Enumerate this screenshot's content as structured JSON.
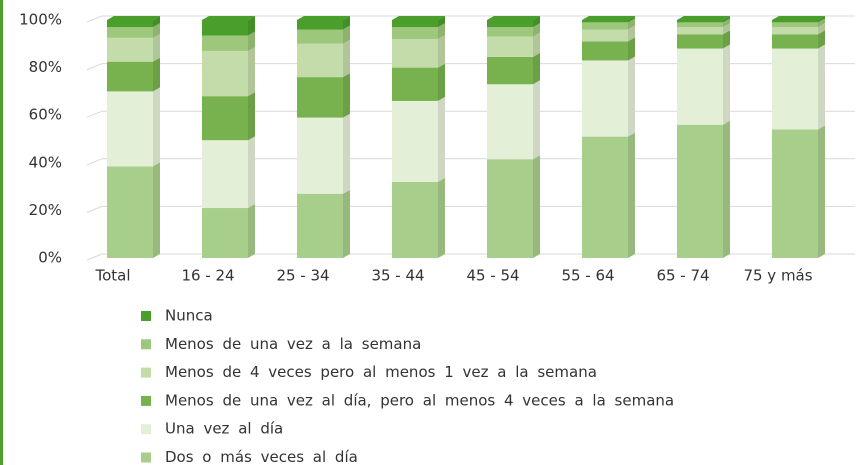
{
  "chart_data": {
    "type": "stacked_bar",
    "categories": [
      "Total",
      "16 - 24",
      "25 - 34",
      "35 - 44",
      "45 - 54",
      "55 - 64",
      "65 - 74",
      "75 y más"
    ],
    "series": [
      {
        "name": "Dos o más veces al día",
        "color": "#a8ce8b",
        "values": [
          38.5,
          21,
          27,
          32,
          41.5,
          51,
          56,
          54
        ]
      },
      {
        "name": "Una vez al día",
        "color": "#e4efd7",
        "values": [
          31.5,
          28.5,
          32,
          34,
          31.5,
          32,
          32,
          34
        ]
      },
      {
        "name": "Menos de una vez al día, pero al menos 4 veces a la semana",
        "color": "#78b24f",
        "values": [
          12.5,
          18.5,
          17,
          14,
          11.5,
          8,
          6,
          6
        ]
      },
      {
        "name": "Menos de 4 veces pero al menos 1 vez a la semana",
        "color": "#c4dcaa",
        "values": [
          10,
          19,
          14,
          12,
          8.5,
          5,
          3,
          3
        ]
      },
      {
        "name": "Menos de una vez a la semana",
        "color": "#9dc77a",
        "values": [
          4.5,
          6.5,
          6,
          5,
          4,
          3,
          2,
          2
        ]
      },
      {
        "name": "Nunca",
        "color": "#4a9e2b",
        "values": [
          3,
          6.5,
          4,
          3,
          3,
          1,
          1,
          1
        ]
      }
    ],
    "ylim": [
      0,
      100
    ],
    "yticks": [
      {
        "value": 0,
        "label": "0%"
      },
      {
        "value": 20,
        "label": "20%"
      },
      {
        "value": 40,
        "label": "40%"
      },
      {
        "value": 60,
        "label": "60%"
      },
      {
        "value": 80,
        "label": "80%"
      },
      {
        "value": 100,
        "label": "100%"
      }
    ],
    "grid": true
  }
}
